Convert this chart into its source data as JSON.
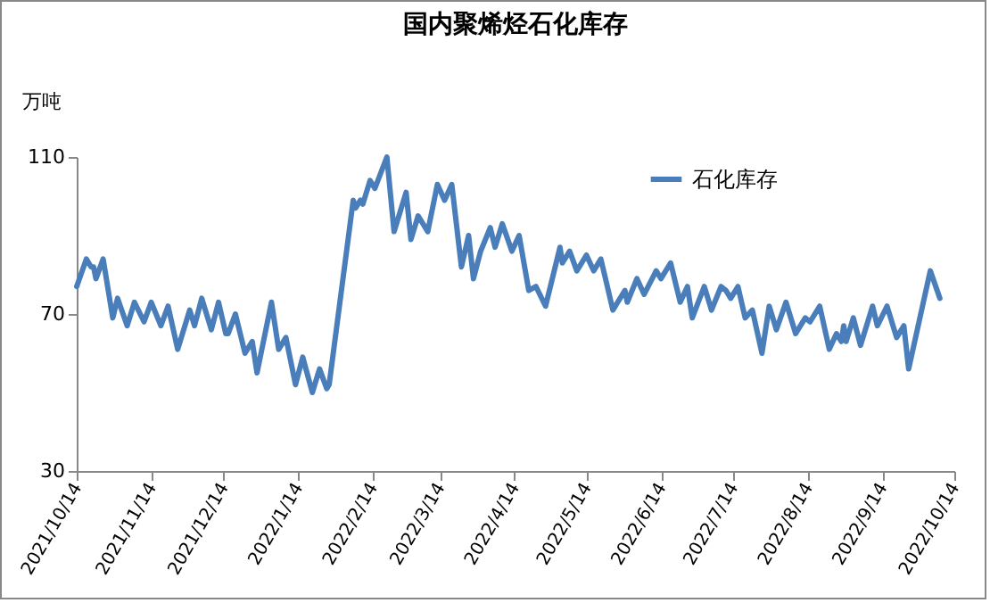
{
  "chart_data": {
    "type": "line",
    "title": "国内聚烯烃石化库存",
    "ylabel": "万吨",
    "legend": "top right",
    "grid": false,
    "marker": "none",
    "line_style": "solid",
    "ylim": [
      30,
      110
    ],
    "yticks": [
      30,
      70,
      110
    ],
    "xlim": [
      "2021-10-14",
      "2022-10-14"
    ],
    "xticks": [
      {
        "value": "2021-10-14",
        "label": "2021/10/14"
      },
      {
        "value": "2021-11-14",
        "label": "2021/11/14"
      },
      {
        "value": "2021-12-14",
        "label": "2021/12/14"
      },
      {
        "value": "2022-01-14",
        "label": "2022/1/14"
      },
      {
        "value": "2022-02-14",
        "label": "2022/2/14"
      },
      {
        "value": "2022-03-14",
        "label": "2022/3/14"
      },
      {
        "value": "2022-04-14",
        "label": "2022/4/14"
      },
      {
        "value": "2022-05-14",
        "label": "2022/5/14"
      },
      {
        "value": "2022-06-14",
        "label": "2022/6/14"
      },
      {
        "value": "2022-07-14",
        "label": "2022/7/14"
      },
      {
        "value": "2022-08-14",
        "label": "2022/8/14"
      },
      {
        "value": "2022-09-14",
        "label": "2022/9/14"
      },
      {
        "value": "2022-10-14",
        "label": "2022/10/14"
      }
    ],
    "x": [
      "2021-10-14",
      "2021-10-18",
      "2021-10-20",
      "2021-10-21",
      "2021-10-22",
      "2021-10-25",
      "2021-10-29",
      "2021-10-31",
      "2021-11-04",
      "2021-11-07",
      "2021-11-11",
      "2021-11-14",
      "2021-11-18",
      "2021-11-21",
      "2021-11-25",
      "2021-11-30",
      "2021-12-02",
      "2021-12-05",
      "2021-12-09",
      "2021-12-12",
      "2021-12-15",
      "2021-12-16",
      "2021-12-19",
      "2021-12-23",
      "2021-12-26",
      "2021-12-28",
      "2022-01-03",
      "2022-01-06",
      "2022-01-09",
      "2022-01-13",
      "2022-01-16",
      "2022-01-20",
      "2022-01-23",
      "2022-01-26",
      "2022-01-27",
      "2022-02-06",
      "2022-02-07",
      "2022-02-09",
      "2022-02-10",
      "2022-02-13",
      "2022-02-15",
      "2022-02-20",
      "2022-02-23",
      "2022-02-28",
      "2022-03-02",
      "2022-03-05",
      "2022-03-09",
      "2022-03-13",
      "2022-03-16",
      "2022-03-19",
      "2022-03-23",
      "2022-03-26",
      "2022-03-28",
      "2022-03-31",
      "2022-04-04",
      "2022-04-06",
      "2022-04-09",
      "2022-04-13",
      "2022-04-16",
      "2022-04-20",
      "2022-04-23",
      "2022-04-27",
      "2022-05-03",
      "2022-05-04",
      "2022-05-07",
      "2022-05-10",
      "2022-05-14",
      "2022-05-17",
      "2022-05-20",
      "2022-05-25",
      "2022-05-27",
      "2022-05-30",
      "2022-05-31",
      "2022-06-04",
      "2022-06-07",
      "2022-06-12",
      "2022-06-14",
      "2022-06-18",
      "2022-06-22",
      "2022-06-25",
      "2022-06-27",
      "2022-07-02",
      "2022-07-05",
      "2022-07-09",
      "2022-07-11",
      "2022-07-13",
      "2022-07-16",
      "2022-07-19",
      "2022-07-22",
      "2022-07-26",
      "2022-07-29",
      "2022-08-01",
      "2022-08-05",
      "2022-08-09",
      "2022-08-13",
      "2022-08-15",
      "2022-08-19",
      "2022-08-23",
      "2022-08-26",
      "2022-08-28",
      "2022-08-29",
      "2022-08-30",
      "2022-09-02",
      "2022-09-05",
      "2022-09-10",
      "2022-09-12",
      "2022-09-16",
      "2022-09-20",
      "2022-09-23",
      "2022-09-25",
      "2022-10-04",
      "2022-10-08"
    ],
    "series": [
      {
        "name": "石化库存",
        "color": "#4a7ebb",
        "values": [
          77,
          84,
          82,
          82,
          79,
          84,
          69,
          74,
          67,
          73,
          68,
          73,
          67,
          72,
          61,
          71,
          67,
          74,
          66,
          73,
          65,
          65,
          70,
          60,
          63,
          55,
          73,
          61,
          64,
          52,
          59,
          50,
          56,
          51,
          52,
          99,
          97,
          99,
          98,
          104,
          102,
          110,
          91,
          101,
          89,
          95,
          91,
          103,
          99,
          103,
          82,
          90,
          79,
          86,
          92,
          87,
          93,
          86,
          90,
          76,
          77,
          72,
          87,
          83,
          86,
          81,
          85,
          81,
          84,
          71,
          73,
          76,
          73,
          79,
          75,
          81,
          79,
          83,
          73,
          77,
          69,
          77,
          71,
          77,
          76,
          74,
          77,
          69,
          71,
          60,
          72,
          66,
          73,
          65,
          69,
          68,
          72,
          61,
          65,
          63,
          67,
          63,
          69,
          62,
          72,
          67,
          72,
          64,
          67,
          56,
          81,
          74
        ]
      }
    ]
  }
}
